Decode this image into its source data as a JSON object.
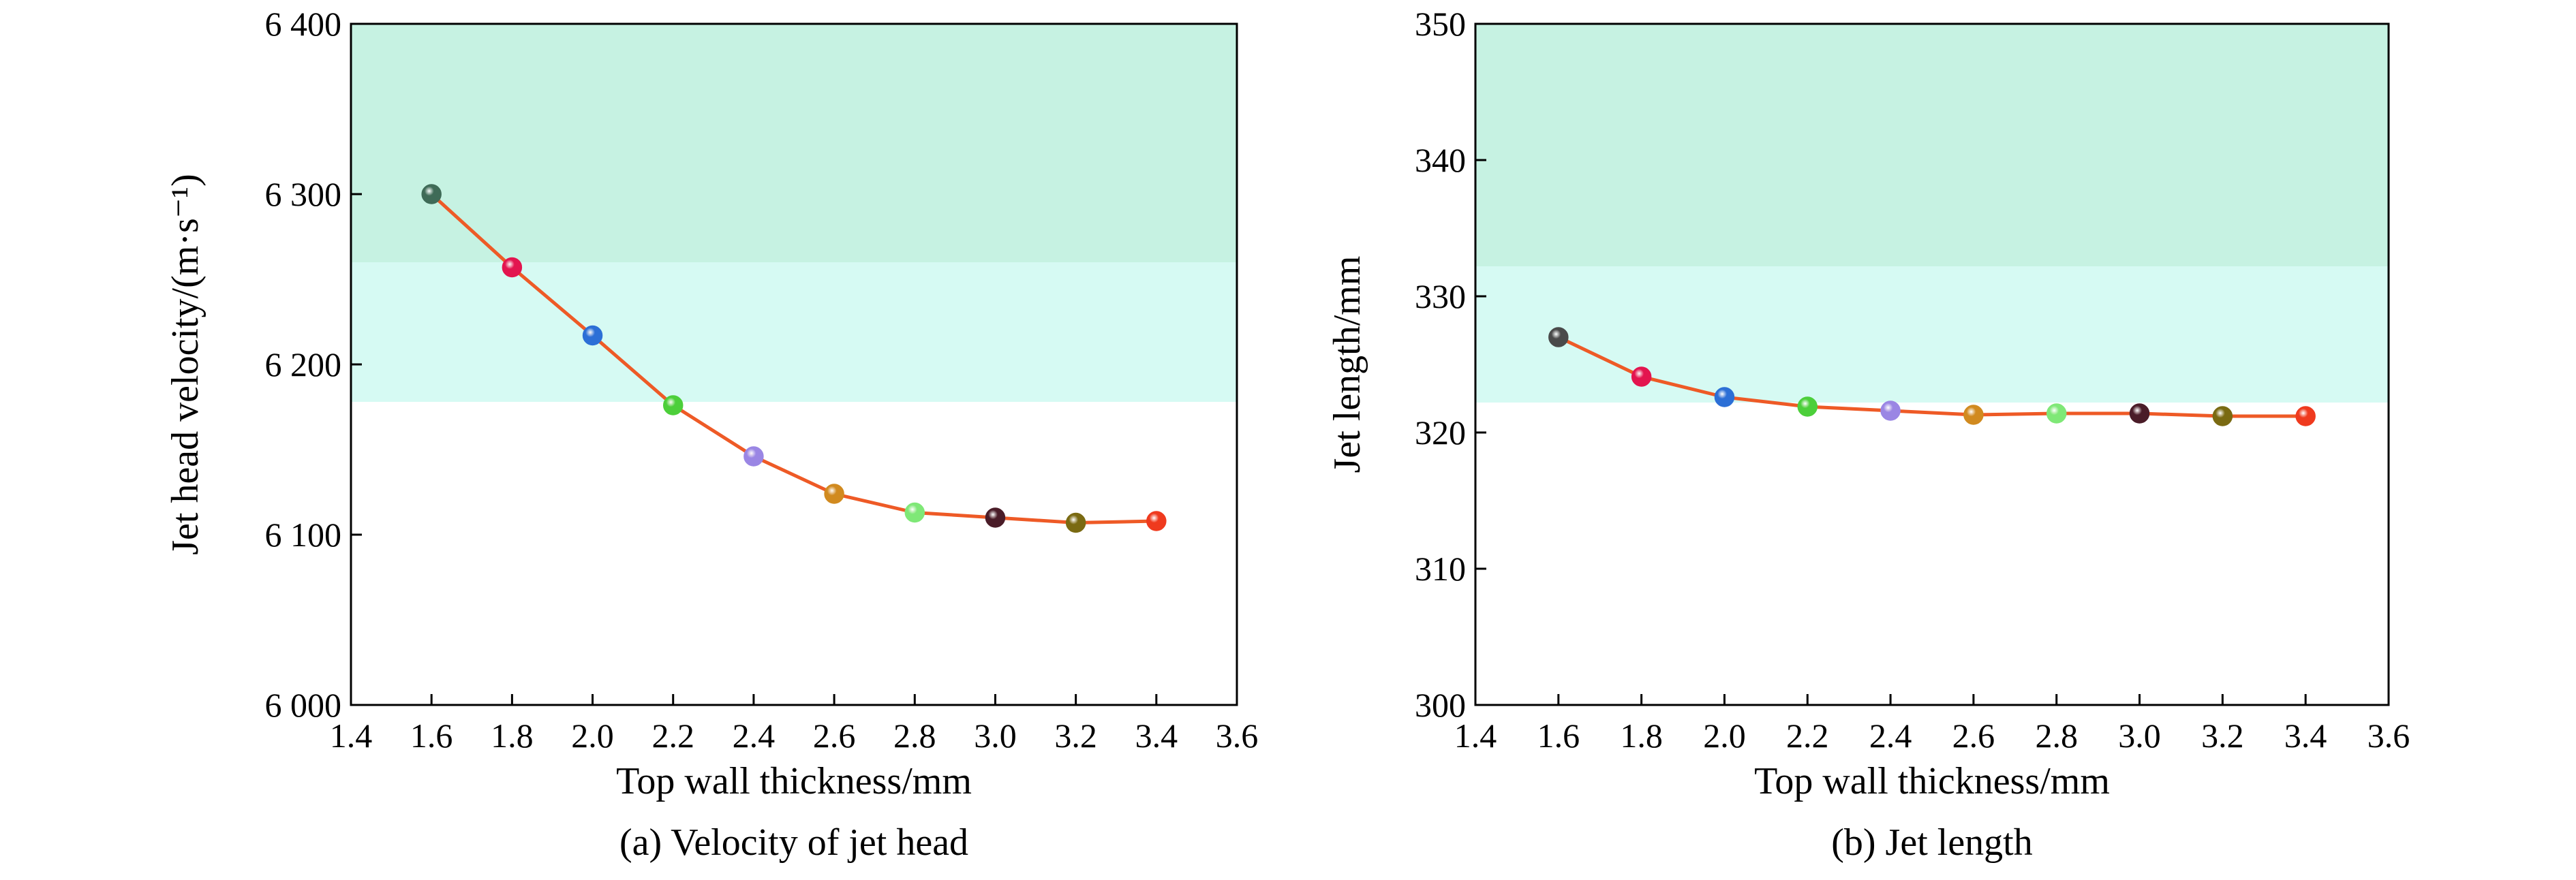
{
  "chart_data": [
    {
      "type": "line",
      "caption": "(a) Velocity of jet head",
      "xlabel": "Top wall thickness/mm",
      "ylabel": "Jet head velocity/(m·s⁻¹)",
      "xlim": [
        1.4,
        3.6
      ],
      "ylim": [
        6000,
        6400
      ],
      "xticks": [
        1.4,
        1.6,
        1.8,
        2.0,
        2.2,
        2.4,
        2.6,
        2.8,
        3.0,
        3.2,
        3.4,
        3.6
      ],
      "xtick_labels": [
        "1.4",
        "1.6",
        "1.8",
        "2.0",
        "2.2",
        "2.4",
        "2.6",
        "2.8",
        "3.0",
        "3.2",
        "3.4",
        "3.6"
      ],
      "yticks": [
        6000,
        6100,
        6200,
        6300,
        6400
      ],
      "ytick_labels": [
        "6 000",
        "6 100",
        "6 200",
        "6 300",
        "6 400"
      ],
      "bands": [
        {
          "y0": 6260,
          "y1": 6400,
          "color": "#c6f2e2"
        },
        {
          "y0": 6178,
          "y1": 6260,
          "color": "#d6faf3"
        }
      ],
      "line_color": "#ee5a26",
      "x": [
        1.6,
        1.8,
        2.0,
        2.2,
        2.4,
        2.6,
        2.8,
        3.0,
        3.2,
        3.4
      ],
      "y": [
        6300,
        6257,
        6217,
        6176,
        6146,
        6124,
        6113,
        6110,
        6107,
        6108
      ],
      "marker_colors": [
        "#3f6b57",
        "#e3154f",
        "#2c6fd6",
        "#4ccf3a",
        "#9a86e4",
        "#d18a1f",
        "#7fe877",
        "#4a1c28",
        "#7a6a12",
        "#ef3a1e"
      ]
    },
    {
      "type": "line",
      "caption": "(b) Jet length",
      "xlabel": "Top wall thickness/mm",
      "ylabel": "Jet length/mm",
      "xlim": [
        1.4,
        3.6
      ],
      "ylim": [
        300,
        350
      ],
      "xticks": [
        1.4,
        1.6,
        1.8,
        2.0,
        2.2,
        2.4,
        2.6,
        2.8,
        3.0,
        3.2,
        3.4,
        3.6
      ],
      "xtick_labels": [
        "1.4",
        "1.6",
        "1.8",
        "2.0",
        "2.2",
        "2.4",
        "2.6",
        "2.8",
        "3.0",
        "3.2",
        "3.4",
        "3.6"
      ],
      "yticks": [
        300,
        310,
        320,
        330,
        340,
        350
      ],
      "ytick_labels": [
        "300",
        "310",
        "320",
        "330",
        "340",
        "350"
      ],
      "bands": [
        {
          "y0": 332.2,
          "y1": 350,
          "color": "#c6f2e2"
        },
        {
          "y0": 322.2,
          "y1": 332.2,
          "color": "#d6faf3"
        }
      ],
      "line_color": "#ee5a26",
      "x": [
        1.6,
        1.8,
        2.0,
        2.2,
        2.4,
        2.6,
        2.8,
        3.0,
        3.2,
        3.4
      ],
      "y": [
        327.0,
        324.1,
        322.6,
        321.9,
        321.6,
        321.3,
        321.4,
        321.4,
        321.2,
        321.2
      ],
      "marker_colors": [
        "#4a4a4a",
        "#e3154f",
        "#2c6fd6",
        "#4ccf3a",
        "#9a86e4",
        "#d18a1f",
        "#7fe877",
        "#4a1c28",
        "#7a6a12",
        "#ef3a1e"
      ]
    }
  ]
}
